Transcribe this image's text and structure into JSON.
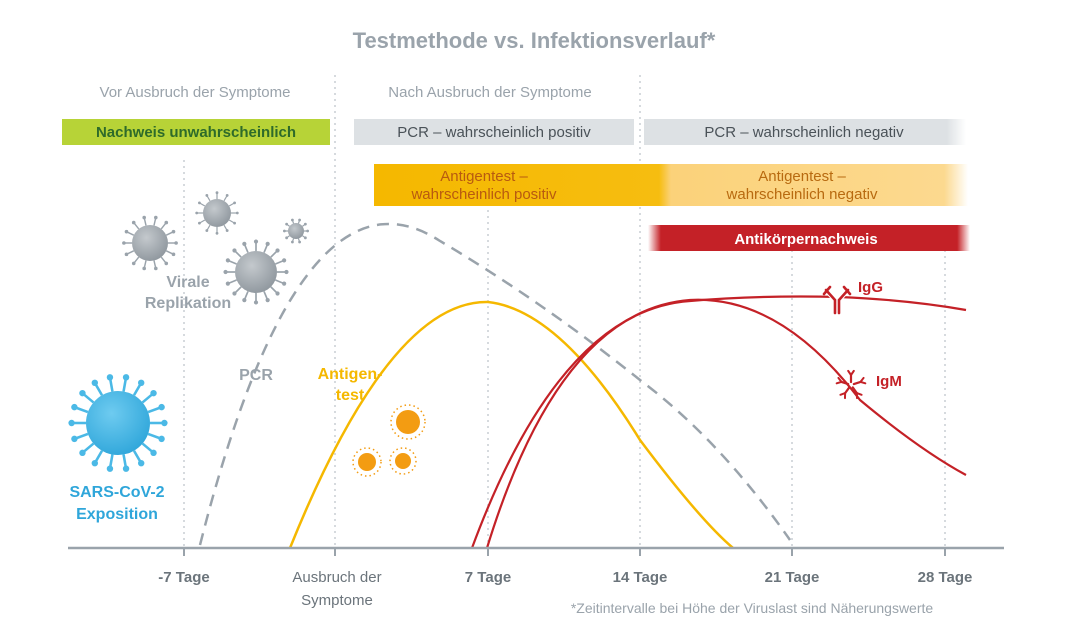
{
  "title": "Testmethode vs. Infektionsverlauf*",
  "phases": {
    "before": "Vor Ausbruch der Symptome",
    "after": "Nach Ausbruch der Symptome"
  },
  "bars": {
    "unlikely": "Nachweis unwahrscheinlich",
    "pcr_positive": "PCR – wahrscheinlich positiv",
    "pcr_negative": "PCR – wahrscheinlich negativ",
    "antigen_positive_1": "Antigentest –",
    "antigen_positive_2": "wahrscheinlich positiv",
    "antigen_negative_1": "Antigentest –",
    "antigen_negative_2": "wahrscheinlich negativ",
    "antibody": "Antikörpernachweis"
  },
  "labels": {
    "viral_1": "Virale",
    "viral_2": "Replikation",
    "pcr": "PCR",
    "antigen_1": "Antigen-",
    "antigen_2": "test",
    "igg": "IgG",
    "igm": "IgM",
    "exposure_1": "SARS-CoV-2",
    "exposure_2": "Exposition"
  },
  "axis": {
    "ticks": [
      "-7 Tage",
      "Ausbruch der",
      "7 Tage",
      "14 Tage",
      "21 Tage",
      "28 Tage"
    ],
    "tick_line2": "Symptome"
  },
  "footnote": "*Zeitintervalle bei Höhe der Viruslast sind Näherungswerte",
  "colors": {
    "grey_text": "#9aa3ab",
    "green": "#b7d337",
    "grey_bar": "#dde1e4",
    "orange": "#f5b800",
    "antigen_light": "#fcd788",
    "red": "#c42127",
    "blue": "#4bb9e6",
    "orange_dot": "#f39c12"
  }
}
